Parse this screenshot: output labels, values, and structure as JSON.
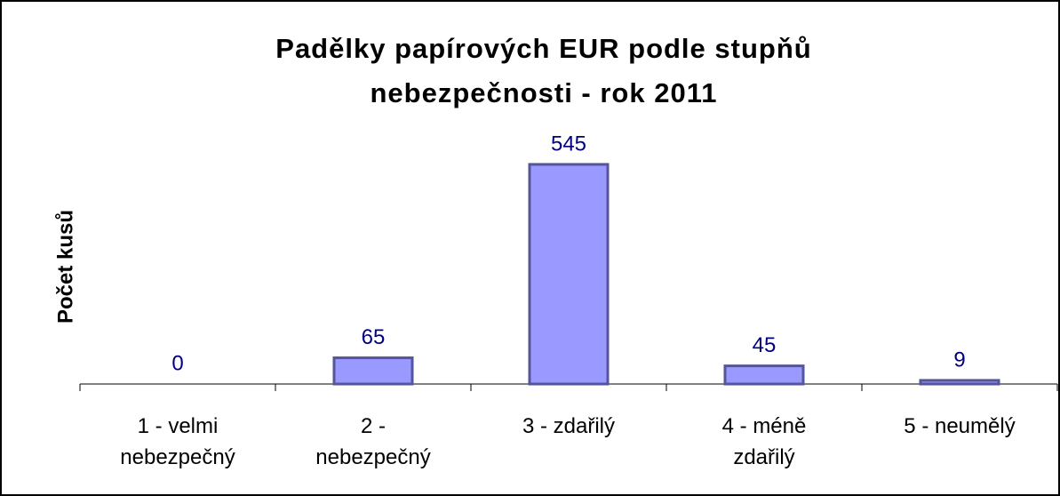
{
  "chart_data": {
    "type": "bar",
    "title": "Padělky papírových EUR podle stupňů nebezpečnosti - rok 2011",
    "y_label": "Počet kusů",
    "categories": [
      "1 - velmi nebezpečný",
      "2 - nebezpečný",
      "3 - zdařilý",
      "4 - méně zdařilý",
      "5 - neumělý"
    ],
    "values": [
      0,
      65,
      545,
      45,
      9
    ],
    "color": "#9999ff",
    "ylim": [
      0,
      600
    ]
  }
}
